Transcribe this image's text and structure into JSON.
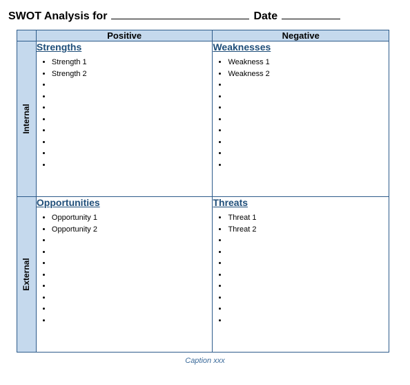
{
  "title": {
    "prefix": "SWOT Analysis for",
    "date_label": "Date"
  },
  "columns": {
    "positive": "Positive",
    "negative": "Negative"
  },
  "rows": {
    "internal": "Internal",
    "external": "External"
  },
  "quadrants": {
    "strengths": {
      "label": "Strengths",
      "items": [
        "Strength 1",
        "Strength 2",
        "",
        "",
        "",
        "",
        "",
        "",
        "",
        ""
      ]
    },
    "weaknesses": {
      "label": "Weaknesses",
      "items": [
        "Weakness 1",
        "Weakness 2",
        "",
        "",
        "",
        "",
        "",
        "",
        "",
        ""
      ]
    },
    "opportunities": {
      "label": "Opportunities",
      "items": [
        "Opportunity 1",
        "Opportunity 2",
        "",
        "",
        "",
        "",
        "",
        "",
        "",
        ""
      ]
    },
    "threats": {
      "label": "Threats",
      "items": [
        "Threat 1",
        "Threat 2",
        "",
        "",
        "",
        "",
        "",
        "",
        "",
        ""
      ]
    }
  },
  "caption": "Caption xxx",
  "style": {
    "header_bg": "#c5d9ed",
    "border_color": "#2c5a8a",
    "quad_title_color": "#1f4e79",
    "caption_color": "#3a6a9a",
    "font_family": "Arial",
    "title_fontsize": 16,
    "header_fontsize": 13,
    "rowheader_fontsize": 12,
    "quad_title_fontsize": 14,
    "item_fontsize": 11,
    "caption_fontsize": 11
  }
}
